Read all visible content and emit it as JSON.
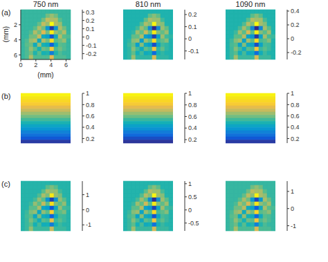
{
  "chart_data": [
    {
      "type": "heatmap",
      "title": "750 nm",
      "panel_label": "(a)",
      "xlabel": "(mm)",
      "ylabel": "(mm)",
      "xlim": [
        0,
        6.6
      ],
      "ylim": [
        0,
        6.6
      ],
      "xticks": [
        0,
        2,
        4,
        6
      ],
      "yticks": [
        2,
        4,
        6
      ],
      "cells": [
        [
          0,
          0,
          0,
          0,
          0,
          0,
          0,
          0,
          0,
          0,
          0,
          0
        ],
        [
          0,
          0,
          0,
          0,
          0,
          0,
          0.05,
          0.08,
          0.05,
          0,
          0,
          0
        ],
        [
          0,
          0,
          0,
          0,
          0,
          0.05,
          0.12,
          0.1,
          0.1,
          0.03,
          0,
          0
        ],
        [
          0,
          0,
          0,
          0,
          0.04,
          0.12,
          0.08,
          0.33,
          0.1,
          0.08,
          0,
          0
        ],
        [
          0,
          0,
          0,
          0.03,
          0.1,
          0.05,
          -0.1,
          -0.25,
          -0.1,
          0.1,
          0.05,
          0
        ],
        [
          0,
          0,
          0.02,
          0.1,
          0.05,
          0.15,
          0.05,
          0.3,
          0.08,
          0.05,
          0.1,
          0
        ],
        [
          0,
          0,
          0.05,
          0.05,
          0.12,
          -0.05,
          -0.08,
          -0.22,
          -0.05,
          0.1,
          0.03,
          0.02
        ],
        [
          0,
          0.02,
          0.08,
          0.1,
          -0.05,
          0.1,
          0.05,
          0.25,
          0.03,
          0.05,
          0.08,
          0
        ],
        [
          0,
          0.03,
          0.05,
          -0.05,
          0.08,
          -0.03,
          -0.05,
          -0.2,
          -0.05,
          0.03,
          0.02,
          0
        ],
        [
          0,
          0.02,
          0.08,
          0.03,
          -0.03,
          0.05,
          0.03,
          0.2,
          0.02,
          0.05,
          0.02,
          0
        ],
        [
          0,
          0.02,
          0.05,
          -0.02,
          0.03,
          -0.03,
          -0.02,
          -0.15,
          -0.02,
          0.02,
          0,
          0
        ],
        [
          0,
          0.02,
          0.1,
          0.02,
          0.02,
          0.02,
          0.02,
          0.15,
          0.02,
          0.02,
          0.02,
          0
        ]
      ],
      "colorbar": {
        "lim": [
          -0.27,
          0.33
        ],
        "ticks": [
          -0.2,
          -0.1,
          0,
          0.1,
          0.2,
          0.3
        ]
      }
    },
    {
      "type": "heatmap",
      "title": "810 nm",
      "xlim": [
        0,
        6.6
      ],
      "ylim": [
        0,
        6.6
      ],
      "tick_labels": false,
      "cells": [
        [
          0,
          0,
          0,
          0,
          0,
          0,
          0,
          0,
          0,
          0,
          0,
          0
        ],
        [
          0,
          0,
          0,
          0,
          0,
          0,
          0.04,
          0.06,
          0.04,
          0,
          0,
          0
        ],
        [
          0,
          0,
          0,
          0,
          0,
          0.04,
          0.08,
          0.07,
          0.07,
          0.02,
          0,
          0
        ],
        [
          0,
          0,
          0,
          0,
          0.03,
          0.08,
          0.06,
          0.23,
          0.07,
          0.06,
          0,
          0
        ],
        [
          0,
          0,
          0,
          0.02,
          0.07,
          0.04,
          -0.07,
          -0.17,
          -0.07,
          0.07,
          0.04,
          0
        ],
        [
          0,
          0,
          0.01,
          0.07,
          0.04,
          0.1,
          0.04,
          0.21,
          0.06,
          0.04,
          0.07,
          0
        ],
        [
          0,
          0,
          0.04,
          0.04,
          0.08,
          -0.04,
          -0.06,
          -0.15,
          -0.04,
          0.07,
          0.02,
          0.01
        ],
        [
          0,
          0.01,
          0.06,
          0.07,
          -0.04,
          0.07,
          0.04,
          0.18,
          0.02,
          0.04,
          0.06,
          0
        ],
        [
          0,
          0.02,
          0.04,
          -0.04,
          0.06,
          -0.02,
          -0.04,
          -0.14,
          -0.04,
          0.02,
          0.01,
          0
        ],
        [
          0,
          0.01,
          0.06,
          0.02,
          -0.02,
          0.04,
          0.02,
          0.14,
          0.01,
          0.04,
          0.01,
          0
        ],
        [
          0,
          0.01,
          0.04,
          -0.01,
          0.02,
          -0.02,
          -0.01,
          -0.11,
          -0.01,
          0.01,
          0,
          0
        ],
        [
          0,
          0.01,
          0.07,
          0.01,
          0.01,
          0.01,
          0.01,
          0.11,
          0.01,
          0.01,
          0.01,
          0
        ]
      ],
      "colorbar": {
        "lim": [
          -0.17,
          0.24
        ],
        "ticks": [
          -0.1,
          0,
          0.1,
          0.2
        ]
      }
    },
    {
      "type": "heatmap",
      "title": "1090 nm",
      "xlim": [
        0,
        6.6
      ],
      "ylim": [
        0,
        6.6
      ],
      "tick_labels": false,
      "cells": [
        [
          0,
          0,
          0,
          0,
          0,
          0,
          0,
          0,
          0,
          0,
          0,
          0
        ],
        [
          0,
          0,
          0,
          0,
          0,
          0,
          0.06,
          0.1,
          0.06,
          0,
          0,
          0
        ],
        [
          0,
          0,
          0,
          0,
          0,
          0.06,
          0.15,
          0.13,
          0.13,
          0.04,
          0,
          0
        ],
        [
          0,
          0,
          0,
          0,
          0.05,
          0.15,
          0.1,
          0.41,
          0.13,
          0.1,
          0,
          0
        ],
        [
          0,
          0,
          0,
          0.04,
          0.13,
          0.06,
          -0.13,
          -0.31,
          -0.13,
          0.13,
          0.06,
          0
        ],
        [
          0,
          0,
          0.03,
          0.13,
          0.06,
          0.19,
          0.06,
          0.38,
          0.1,
          0.06,
          0.13,
          0
        ],
        [
          0,
          0,
          0.06,
          0.06,
          0.15,
          -0.06,
          -0.1,
          -0.28,
          -0.06,
          0.13,
          0.04,
          0.03
        ],
        [
          0,
          0.03,
          0.1,
          0.13,
          -0.06,
          0.13,
          0.06,
          0.31,
          0.04,
          0.06,
          0.1,
          0
        ],
        [
          0,
          0.04,
          0.06,
          -0.06,
          0.1,
          -0.04,
          -0.06,
          -0.25,
          -0.06,
          0.04,
          0.03,
          0
        ],
        [
          0,
          0.03,
          0.1,
          0.04,
          -0.04,
          0.06,
          0.04,
          0.25,
          0.03,
          0.06,
          0.03,
          0
        ],
        [
          0,
          0.03,
          0.06,
          -0.03,
          0.04,
          -0.04,
          -0.03,
          -0.19,
          -0.03,
          0.03,
          0,
          0
        ],
        [
          0,
          0.03,
          0.13,
          0.03,
          0.03,
          0.03,
          0.03,
          0.19,
          0.03,
          0.03,
          0.03,
          0
        ]
      ],
      "colorbar": {
        "lim": [
          -0.3,
          0.42
        ],
        "ticks": [
          -0.2,
          0,
          0.2,
          0.4
        ]
      }
    },
    {
      "type": "heatmap",
      "panel_label": "(b)",
      "xlim": [
        0,
        6.6
      ],
      "ylim": [
        0,
        6.6
      ],
      "tick_labels": false,
      "cells": [
        [
          0.97
        ],
        [
          0.92
        ],
        [
          0.86
        ],
        [
          0.81
        ],
        [
          0.75
        ],
        [
          0.7
        ],
        [
          0.64
        ],
        [
          0.59
        ],
        [
          0.53
        ],
        [
          0.48
        ],
        [
          0.42
        ],
        [
          0.37
        ],
        [
          0.31
        ],
        [
          0.26
        ],
        [
          0.2
        ],
        [
          0.15
        ]
      ],
      "colorbar": {
        "lim": [
          0.12,
          1
        ],
        "ticks": [
          0.2,
          0.4,
          0.6,
          0.8,
          1
        ]
      }
    },
    {
      "type": "heatmap",
      "xlim": [
        0,
        6.6
      ],
      "ylim": [
        0,
        6.6
      ],
      "tick_labels": false,
      "cells": [
        [
          0.97
        ],
        [
          0.92
        ],
        [
          0.86
        ],
        [
          0.81
        ],
        [
          0.75
        ],
        [
          0.7
        ],
        [
          0.64
        ],
        [
          0.59
        ],
        [
          0.53
        ],
        [
          0.48
        ],
        [
          0.42
        ],
        [
          0.37
        ],
        [
          0.31
        ],
        [
          0.26
        ],
        [
          0.2
        ],
        [
          0.16
        ]
      ],
      "colorbar": {
        "lim": [
          0.14,
          1
        ],
        "ticks": [
          0.2,
          0.4,
          0.6,
          0.8,
          1
        ]
      }
    },
    {
      "type": "heatmap",
      "xlim": [
        0,
        6.6
      ],
      "ylim": [
        0,
        6.6
      ],
      "tick_labels": false,
      "cells": [
        [
          0.97
        ],
        [
          0.92
        ],
        [
          0.86
        ],
        [
          0.81
        ],
        [
          0.75
        ],
        [
          0.7
        ],
        [
          0.64
        ],
        [
          0.59
        ],
        [
          0.53
        ],
        [
          0.48
        ],
        [
          0.42
        ],
        [
          0.37
        ],
        [
          0.31
        ],
        [
          0.26
        ],
        [
          0.2
        ],
        [
          0.15
        ]
      ],
      "colorbar": {
        "lim": [
          0.12,
          1
        ],
        "ticks": [
          0.2,
          0.4,
          0.6,
          0.8,
          1
        ]
      }
    },
    {
      "type": "heatmap",
      "panel_label": "(c)",
      "xlim": [
        0,
        6.6
      ],
      "ylim": [
        0,
        6.6
      ],
      "tick_labels": false,
      "cells": [
        [
          0,
          0,
          0,
          0,
          0,
          0,
          0,
          0,
          0,
          0,
          0,
          0
        ],
        [
          0,
          0,
          0,
          0,
          0,
          0,
          0.25,
          0.4,
          0.25,
          0,
          0,
          0
        ],
        [
          0,
          0,
          0,
          0,
          0,
          0.25,
          0.6,
          0.5,
          0.5,
          0.15,
          0,
          0
        ],
        [
          0,
          0,
          0,
          0,
          0.2,
          0.6,
          0.4,
          1.65,
          0.5,
          0.4,
          0,
          0
        ],
        [
          0,
          0,
          0,
          0.15,
          0.5,
          0.25,
          -0.5,
          -1.25,
          -0.5,
          0.5,
          0.25,
          0
        ],
        [
          0,
          0,
          0.1,
          0.5,
          0.25,
          0.75,
          0.25,
          1.5,
          0.4,
          0.25,
          0.5,
          0
        ],
        [
          0,
          0,
          0.25,
          0.25,
          0.6,
          -0.25,
          -0.4,
          -1.1,
          -0.25,
          0.5,
          0.15,
          0.1
        ],
        [
          0,
          0.1,
          0.4,
          0.5,
          -0.25,
          0.5,
          0.25,
          1.25,
          0.15,
          0.25,
          0.4,
          0
        ],
        [
          0,
          0.15,
          0.25,
          -0.25,
          0.4,
          -0.15,
          -0.25,
          -1,
          -0.25,
          0.15,
          0.1,
          0
        ],
        [
          0,
          0.1,
          0.4,
          0.15,
          -0.15,
          0.25,
          0.15,
          1,
          0.1,
          0.25,
          0.1,
          0
        ],
        [
          0,
          0.1,
          0.25,
          -0.1,
          0.15,
          -0.15,
          -0.1,
          -0.75,
          -0.1,
          0.1,
          0,
          0
        ],
        [
          0,
          0.1,
          0.5,
          0.1,
          0.1,
          0.1,
          0.1,
          0.75,
          0.1,
          0.1,
          0.1,
          0
        ]
      ],
      "colorbar": {
        "lim": [
          -1.4,
          1.9
        ],
        "ticks": [
          -1,
          0,
          1
        ]
      }
    },
    {
      "type": "heatmap",
      "xlim": [
        0,
        6.6
      ],
      "ylim": [
        0,
        6.6
      ],
      "tick_labels": false,
      "cells": [
        [
          0,
          0,
          0,
          0,
          0,
          0,
          0,
          0,
          0,
          0,
          0,
          0
        ],
        [
          0,
          0,
          0,
          0,
          0,
          0,
          0.16,
          0.26,
          0.16,
          0,
          0,
          0
        ],
        [
          0,
          0,
          0,
          0,
          0,
          0.16,
          0.38,
          0.32,
          0.32,
          0.1,
          0,
          0
        ],
        [
          0,
          0,
          0,
          0,
          0.13,
          0.38,
          0.26,
          1.05,
          0.32,
          0.26,
          0,
          0
        ],
        [
          0,
          0,
          0,
          0.1,
          0.32,
          0.16,
          -0.32,
          -0.78,
          -0.32,
          0.32,
          0.16,
          0
        ],
        [
          0,
          0,
          0.06,
          0.32,
          0.16,
          0.48,
          0.16,
          0.96,
          0.26,
          0.16,
          0.32,
          0
        ],
        [
          0,
          0,
          0.16,
          0.16,
          0.38,
          -0.16,
          -0.26,
          -0.7,
          -0.16,
          0.32,
          0.1,
          0.06
        ],
        [
          0,
          0.06,
          0.26,
          0.32,
          -0.16,
          0.32,
          0.16,
          0.8,
          0.1,
          0.16,
          0.26,
          0
        ],
        [
          0,
          0.1,
          0.16,
          -0.16,
          0.26,
          -0.1,
          -0.16,
          -0.64,
          -0.16,
          0.1,
          0.06,
          0
        ],
        [
          0,
          0.06,
          0.26,
          0.1,
          -0.1,
          0.16,
          0.1,
          0.64,
          0.06,
          0.16,
          0.06,
          0
        ],
        [
          0,
          0.06,
          0.16,
          -0.06,
          0.1,
          -0.1,
          -0.06,
          -0.48,
          -0.06,
          0.06,
          0,
          0
        ],
        [
          0,
          0.06,
          0.32,
          0.06,
          0.06,
          0.06,
          0.06,
          0.48,
          0.06,
          0.06,
          0.06,
          0
        ]
      ],
      "colorbar": {
        "lim": [
          -0.8,
          1.1
        ],
        "ticks": [
          -0.5,
          0,
          0.5,
          1
        ]
      }
    },
    {
      "type": "heatmap",
      "xlim": [
        0,
        6.6
      ],
      "ylim": [
        0,
        6.6
      ],
      "tick_labels": false,
      "cells": [
        [
          0,
          0,
          0,
          0,
          0,
          0,
          0,
          0,
          0,
          0,
          0,
          0
        ],
        [
          0,
          0,
          0,
          0,
          0,
          0,
          0.23,
          0.36,
          0.23,
          0,
          0,
          0
        ],
        [
          0,
          0,
          0,
          0,
          0,
          0.23,
          0.54,
          0.45,
          0.45,
          0.14,
          0,
          0
        ],
        [
          0,
          0,
          0,
          0,
          0.18,
          0.54,
          0.36,
          1.49,
          0.45,
          0.36,
          0,
          0
        ],
        [
          0,
          0,
          0,
          0.14,
          0.45,
          0.23,
          -0.45,
          -1.13,
          -0.45,
          0.45,
          0.23,
          0
        ],
        [
          0,
          0,
          0.09,
          0.45,
          0.23,
          0.68,
          0.23,
          1.35,
          0.36,
          0.23,
          0.45,
          0
        ],
        [
          0,
          0,
          0.23,
          0.23,
          0.54,
          -0.23,
          -0.36,
          -0.99,
          -0.23,
          0.45,
          0.14,
          0.09
        ],
        [
          0,
          0.09,
          0.36,
          0.45,
          -0.23,
          0.45,
          0.23,
          1.13,
          0.14,
          0.23,
          0.36,
          0
        ],
        [
          0,
          0.14,
          0.23,
          -0.23,
          0.36,
          -0.14,
          -0.23,
          -0.9,
          -0.23,
          0.14,
          0.09,
          0
        ],
        [
          0,
          0.09,
          0.36,
          0.14,
          -0.14,
          0.23,
          0.14,
          0.9,
          0.09,
          0.23,
          0.09,
          0
        ],
        [
          0,
          0.09,
          0.23,
          -0.09,
          0.14,
          -0.14,
          -0.09,
          -0.68,
          -0.09,
          0.09,
          0,
          0
        ],
        [
          0,
          0.09,
          0.45,
          0.09,
          0.09,
          0.09,
          0.09,
          0.68,
          0.09,
          0.09,
          0.09,
          0
        ]
      ],
      "colorbar": {
        "lim": [
          -1.3,
          1.6
        ],
        "ticks": [
          -1,
          0,
          1
        ]
      }
    }
  ]
}
